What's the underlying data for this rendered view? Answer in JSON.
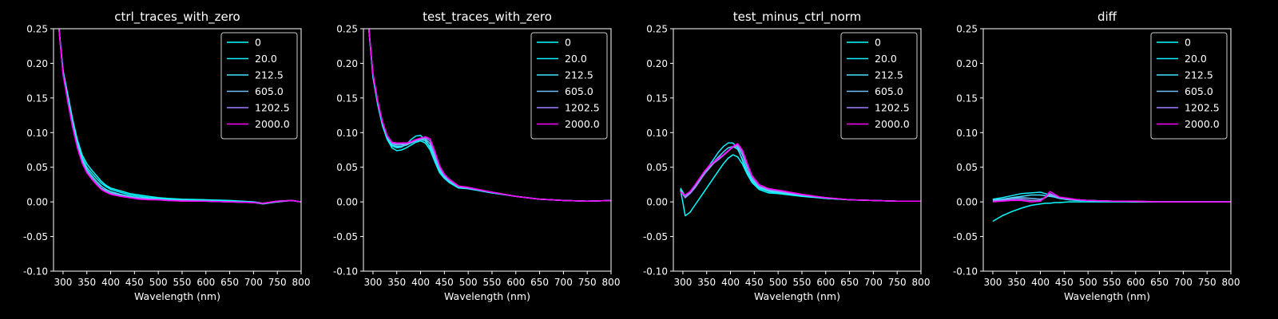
{
  "figure": {
    "background": "#000000",
    "foreground": "#ffffff"
  },
  "series_colors": {
    "0": "#00ffff",
    "20.0": "#0fefff",
    "212.5": "#3fdfff",
    "605.0": "#6fbfff",
    "1202.5": "#a07fff",
    "2000.0": "#ff00ff"
  },
  "chart_data": [
    {
      "type": "line",
      "title": "ctrl_traces_with_zero",
      "xlabel": "Wavelength (nm)",
      "ylabel": "",
      "xlim": [
        280,
        800
      ],
      "ylim": [
        -0.1,
        0.25
      ],
      "xticks": [
        300,
        350,
        400,
        450,
        500,
        550,
        600,
        650,
        700,
        750,
        800
      ],
      "yticks": [
        -0.1,
        -0.05,
        0.0,
        0.05,
        0.1,
        0.15,
        0.2,
        0.25
      ],
      "legend": "top-right",
      "grid": false,
      "x": [
        290,
        300,
        310,
        320,
        330,
        340,
        350,
        360,
        370,
        380,
        390,
        400,
        420,
        440,
        460,
        480,
        500,
        520,
        550,
        600,
        650,
        700,
        720,
        750,
        780,
        800
      ],
      "series": [
        {
          "name": "0",
          "values": [
            0.26,
            0.19,
            0.155,
            0.12,
            0.09,
            0.068,
            0.055,
            0.046,
            0.038,
            0.03,
            0.024,
            0.02,
            0.016,
            0.012,
            0.01,
            0.008,
            0.006,
            0.005,
            0.004,
            0.003,
            0.002,
            0.0,
            -0.002,
            0.001,
            0.002,
            0.0
          ]
        },
        {
          "name": "20.0",
          "values": [
            0.26,
            0.19,
            0.15,
            0.115,
            0.086,
            0.064,
            0.05,
            0.042,
            0.034,
            0.027,
            0.022,
            0.018,
            0.014,
            0.01,
            0.008,
            0.006,
            0.005,
            0.004,
            0.003,
            0.002,
            0.001,
            0.0,
            -0.002,
            0.001,
            0.002,
            0.0
          ]
        },
        {
          "name": "212.5",
          "values": [
            0.26,
            0.188,
            0.148,
            0.112,
            0.083,
            0.061,
            0.047,
            0.038,
            0.03,
            0.023,
            0.018,
            0.015,
            0.011,
            0.008,
            0.006,
            0.005,
            0.004,
            0.003,
            0.002,
            0.001,
            0.0,
            -0.001,
            -0.003,
            0.0,
            0.002,
            0.0
          ]
        },
        {
          "name": "605.0",
          "values": [
            0.26,
            0.186,
            0.146,
            0.11,
            0.08,
            0.058,
            0.044,
            0.035,
            0.027,
            0.02,
            0.016,
            0.013,
            0.01,
            0.007,
            0.005,
            0.004,
            0.003,
            0.002,
            0.002,
            0.001,
            0.0,
            -0.001,
            -0.002,
            0.0,
            0.002,
            0.0
          ]
        },
        {
          "name": "1202.5",
          "values": [
            0.26,
            0.185,
            0.145,
            0.109,
            0.079,
            0.057,
            0.043,
            0.034,
            0.026,
            0.019,
            0.015,
            0.012,
            0.009,
            0.006,
            0.005,
            0.004,
            0.003,
            0.002,
            0.002,
            0.001,
            0.0,
            -0.001,
            -0.002,
            0.001,
            0.002,
            0.0
          ]
        },
        {
          "name": "2000.0",
          "values": [
            0.26,
            0.184,
            0.144,
            0.108,
            0.078,
            0.056,
            0.042,
            0.033,
            0.025,
            0.018,
            0.014,
            0.011,
            0.008,
            0.006,
            0.004,
            0.003,
            0.003,
            0.002,
            0.001,
            0.001,
            0.0,
            -0.001,
            -0.002,
            0.001,
            0.002,
            0.0
          ]
        }
      ]
    },
    {
      "type": "line",
      "title": "test_traces_with_zero",
      "xlabel": "Wavelength (nm)",
      "ylabel": "",
      "xlim": [
        280,
        800
      ],
      "ylim": [
        -0.1,
        0.25
      ],
      "xticks": [
        300,
        350,
        400,
        450,
        500,
        550,
        600,
        650,
        700,
        750,
        800
      ],
      "yticks": [
        -0.1,
        -0.05,
        0.0,
        0.05,
        0.1,
        0.15,
        0.2,
        0.25
      ],
      "legend": "top-right",
      "grid": false,
      "x": [
        290,
        300,
        310,
        320,
        330,
        340,
        350,
        360,
        370,
        380,
        390,
        400,
        410,
        420,
        430,
        440,
        450,
        460,
        480,
        500,
        550,
        600,
        650,
        700,
        750,
        800
      ],
      "series": [
        {
          "name": "0",
          "values": [
            0.26,
            0.18,
            0.14,
            0.11,
            0.09,
            0.078,
            0.074,
            0.075,
            0.078,
            0.082,
            0.086,
            0.088,
            0.085,
            0.075,
            0.058,
            0.042,
            0.034,
            0.028,
            0.02,
            0.019,
            0.013,
            0.008,
            0.004,
            0.002,
            0.001,
            0.002
          ]
        },
        {
          "name": "20.0",
          "values": [
            0.26,
            0.182,
            0.142,
            0.112,
            0.092,
            0.081,
            0.078,
            0.079,
            0.083,
            0.09,
            0.095,
            0.096,
            0.09,
            0.078,
            0.06,
            0.044,
            0.035,
            0.029,
            0.021,
            0.019,
            0.013,
            0.008,
            0.004,
            0.002,
            0.001,
            0.002
          ]
        },
        {
          "name": "212.5",
          "values": [
            0.26,
            0.183,
            0.143,
            0.113,
            0.093,
            0.082,
            0.08,
            0.08,
            0.082,
            0.085,
            0.088,
            0.09,
            0.088,
            0.08,
            0.063,
            0.046,
            0.036,
            0.03,
            0.021,
            0.02,
            0.014,
            0.008,
            0.004,
            0.002,
            0.001,
            0.002
          ]
        },
        {
          "name": "605.0",
          "values": [
            0.26,
            0.184,
            0.144,
            0.114,
            0.094,
            0.084,
            0.082,
            0.082,
            0.083,
            0.085,
            0.088,
            0.09,
            0.091,
            0.084,
            0.066,
            0.048,
            0.037,
            0.031,
            0.022,
            0.02,
            0.014,
            0.008,
            0.004,
            0.002,
            0.001,
            0.002
          ]
        },
        {
          "name": "1202.5",
          "values": [
            0.26,
            0.185,
            0.145,
            0.115,
            0.095,
            0.085,
            0.084,
            0.084,
            0.084,
            0.086,
            0.089,
            0.091,
            0.093,
            0.088,
            0.07,
            0.05,
            0.039,
            0.032,
            0.022,
            0.02,
            0.014,
            0.008,
            0.004,
            0.002,
            0.001,
            0.002
          ]
        },
        {
          "name": "2000.0",
          "values": [
            0.26,
            0.186,
            0.146,
            0.116,
            0.096,
            0.086,
            0.085,
            0.085,
            0.085,
            0.087,
            0.09,
            0.092,
            0.094,
            0.091,
            0.073,
            0.052,
            0.04,
            0.033,
            0.023,
            0.021,
            0.014,
            0.008,
            0.004,
            0.002,
            0.001,
            0.002
          ]
        }
      ]
    },
    {
      "type": "line",
      "title": "test_minus_ctrl_norm",
      "xlabel": "Wavelength (nm)",
      "ylabel": "",
      "xlim": [
        280,
        800
      ],
      "ylim": [
        -0.1,
        0.25
      ],
      "xticks": [
        300,
        350,
        400,
        450,
        500,
        550,
        600,
        650,
        700,
        750,
        800
      ],
      "yticks": [
        -0.1,
        -0.05,
        0.0,
        0.05,
        0.1,
        0.15,
        0.2,
        0.25
      ],
      "legend": "top-right",
      "grid": false,
      "x": [
        295,
        305,
        315,
        325,
        335,
        345,
        355,
        365,
        375,
        385,
        395,
        405,
        415,
        425,
        435,
        445,
        460,
        480,
        500,
        550,
        600,
        650,
        700,
        750,
        800
      ],
      "series": [
        {
          "name": "0",
          "values": [
            0.018,
            -0.02,
            -0.015,
            -0.005,
            0.005,
            0.015,
            0.025,
            0.035,
            0.045,
            0.055,
            0.063,
            0.068,
            0.065,
            0.055,
            0.04,
            0.028,
            0.018,
            0.013,
            0.012,
            0.008,
            0.005,
            0.003,
            0.002,
            0.001,
            0.001
          ]
        },
        {
          "name": "20.0",
          "values": [
            0.02,
            0.008,
            0.012,
            0.02,
            0.03,
            0.042,
            0.052,
            0.062,
            0.072,
            0.08,
            0.085,
            0.085,
            0.078,
            0.06,
            0.042,
            0.03,
            0.02,
            0.015,
            0.013,
            0.009,
            0.005,
            0.003,
            0.002,
            0.001,
            0.001
          ]
        },
        {
          "name": "212.5",
          "values": [
            0.018,
            0.008,
            0.014,
            0.022,
            0.032,
            0.042,
            0.05,
            0.058,
            0.065,
            0.072,
            0.078,
            0.08,
            0.076,
            0.062,
            0.045,
            0.032,
            0.021,
            0.016,
            0.014,
            0.009,
            0.005,
            0.003,
            0.002,
            0.001,
            0.001
          ]
        },
        {
          "name": "605.0",
          "values": [
            0.016,
            0.006,
            0.012,
            0.02,
            0.03,
            0.04,
            0.048,
            0.056,
            0.062,
            0.068,
            0.074,
            0.079,
            0.08,
            0.068,
            0.05,
            0.034,
            0.022,
            0.017,
            0.015,
            0.01,
            0.006,
            0.003,
            0.002,
            0.001,
            0.001
          ]
        },
        {
          "name": "1202.5",
          "values": [
            0.015,
            0.007,
            0.012,
            0.02,
            0.03,
            0.04,
            0.05,
            0.056,
            0.061,
            0.067,
            0.073,
            0.079,
            0.082,
            0.072,
            0.053,
            0.036,
            0.023,
            0.018,
            0.016,
            0.01,
            0.006,
            0.003,
            0.002,
            0.001,
            0.001
          ]
        },
        {
          "name": "2000.0",
          "values": [
            0.014,
            0.01,
            0.015,
            0.024,
            0.034,
            0.044,
            0.052,
            0.058,
            0.063,
            0.068,
            0.074,
            0.08,
            0.084,
            0.075,
            0.056,
            0.038,
            0.025,
            0.019,
            0.017,
            0.011,
            0.006,
            0.003,
            0.002,
            0.001,
            0.001
          ]
        }
      ]
    },
    {
      "type": "line",
      "title": "diff",
      "xlabel": "Wavelength (nm)",
      "ylabel": "",
      "xlim": [
        280,
        800
      ],
      "ylim": [
        -0.1,
        0.25
      ],
      "xticks": [
        300,
        350,
        400,
        450,
        500,
        550,
        600,
        650,
        700,
        750,
        800
      ],
      "yticks": [
        -0.1,
        -0.05,
        0.0,
        0.05,
        0.1,
        0.15,
        0.2,
        0.25
      ],
      "legend": "top-right",
      "grid": false,
      "x": [
        300,
        320,
        340,
        360,
        380,
        400,
        410,
        420,
        430,
        440,
        460,
        480,
        500,
        550,
        600,
        650,
        700,
        750,
        800
      ],
      "series": [
        {
          "name": "0",
          "values": [
            -0.028,
            -0.02,
            -0.014,
            -0.009,
            -0.005,
            -0.003,
            -0.002,
            -0.002,
            -0.001,
            -0.001,
            0.0,
            0.0,
            0.0,
            0.0,
            0.0,
            0.0,
            0.0,
            0.0,
            0.0
          ]
        },
        {
          "name": "20.0",
          "values": [
            0.004,
            0.006,
            0.009,
            0.012,
            0.013,
            0.014,
            0.012,
            0.01,
            0.007,
            0.005,
            0.003,
            0.002,
            0.002,
            0.001,
            0.0,
            0.0,
            0.0,
            0.0,
            0.0
          ]
        },
        {
          "name": "212.5",
          "values": [
            0.003,
            0.004,
            0.006,
            0.008,
            0.01,
            0.01,
            0.009,
            0.008,
            0.007,
            0.005,
            0.003,
            0.002,
            0.002,
            0.001,
            0.0,
            0.0,
            0.0,
            0.0,
            0.0
          ]
        },
        {
          "name": "605.0",
          "values": [
            0.002,
            0.003,
            0.005,
            0.006,
            0.005,
            0.004,
            0.006,
            0.01,
            0.008,
            0.006,
            0.004,
            0.003,
            0.002,
            0.001,
            0.0,
            0.0,
            0.0,
            0.0,
            0.0
          ]
        },
        {
          "name": "1202.5",
          "values": [
            0.001,
            0.002,
            0.003,
            0.004,
            0.002,
            0.002,
            0.006,
            0.012,
            0.009,
            0.006,
            0.004,
            0.003,
            0.002,
            0.001,
            0.001,
            0.0,
            0.0,
            0.0,
            0.0
          ]
        },
        {
          "name": "2000.0",
          "values": [
            0.0,
            0.001,
            0.002,
            0.002,
            0.0,
            0.001,
            0.007,
            0.015,
            0.011,
            0.007,
            0.005,
            0.003,
            0.002,
            0.001,
            0.001,
            0.0,
            0.0,
            0.0,
            0.0
          ]
        }
      ]
    }
  ]
}
